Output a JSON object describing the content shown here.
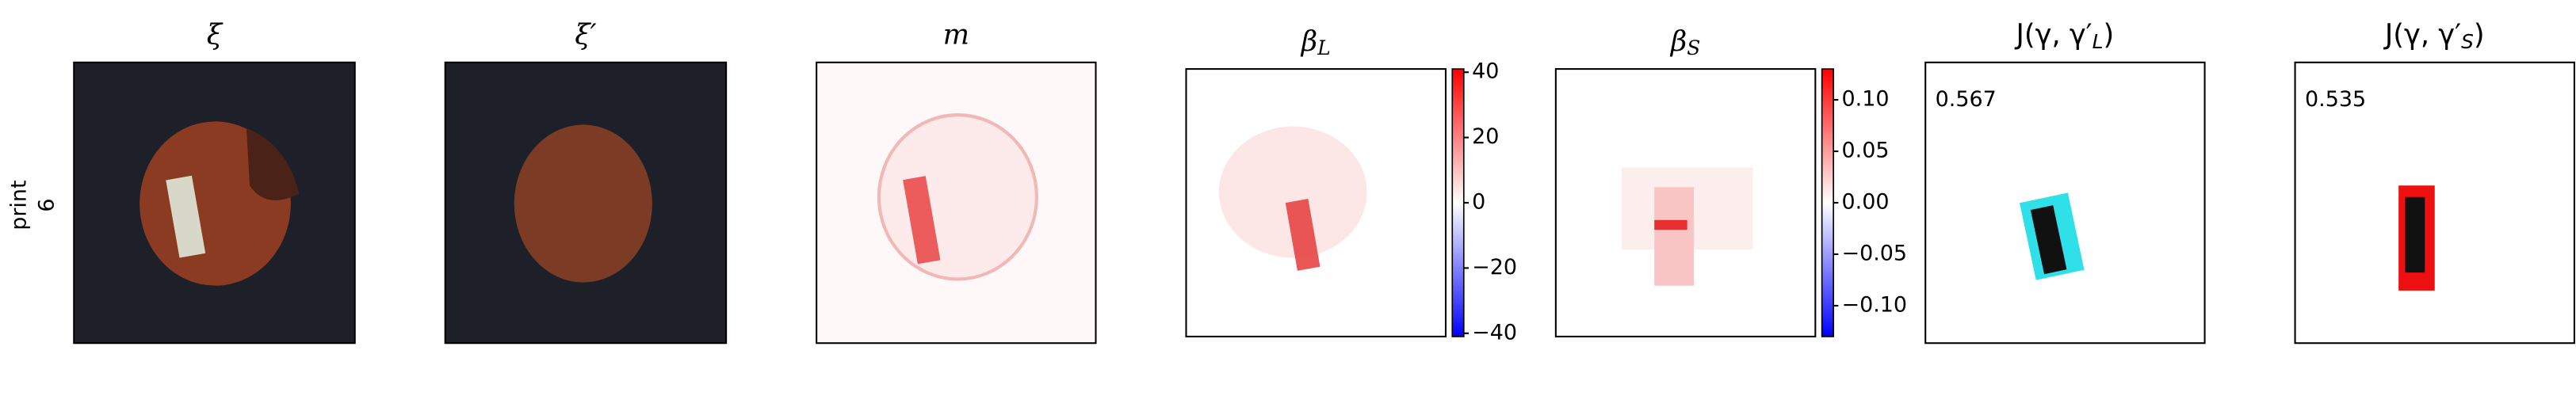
{
  "row_label": [
    "print",
    "6"
  ],
  "panels": [
    {
      "title": [
        "ξ"
      ]
    },
    {
      "title": [
        "ξ′"
      ]
    },
    {
      "title": [
        "m"
      ]
    },
    {
      "title": [
        "β",
        "L"
      ],
      "colorbar": {
        "clim": [
          -41,
          41
        ],
        "ticks": [
          {
            "value": 40,
            "label": "40"
          },
          {
            "value": 20,
            "label": "20"
          },
          {
            "value": 0,
            "label": "0"
          },
          {
            "value": -20,
            "label": "−20"
          },
          {
            "value": -40,
            "label": "−40"
          }
        ]
      }
    },
    {
      "title": [
        "β",
        "S"
      ],
      "colorbar": {
        "clim": [
          -0.13,
          0.13
        ],
        "ticks": [
          {
            "value": 0.1,
            "label": "0.10"
          },
          {
            "value": 0.05,
            "label": "0.05"
          },
          {
            "value": 0,
            "label": "0.00"
          },
          {
            "value": -0.05,
            "label": "−0.05"
          },
          {
            "value": -0.1,
            "label": "−0.10"
          }
        ]
      }
    },
    {
      "title": [
        "J(γ, γ′",
        "L",
        ")"
      ],
      "annotation": "0.567"
    },
    {
      "title": [
        "J(γ, γ′",
        "S",
        ")"
      ],
      "annotation": "0.535"
    }
  ]
}
